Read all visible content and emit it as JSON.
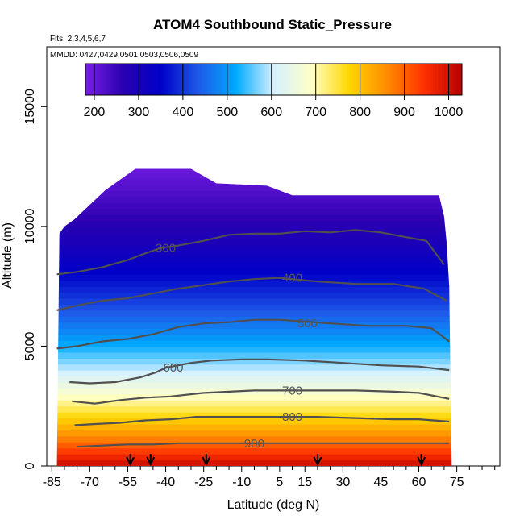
{
  "chart_data": {
    "type": "heatmap",
    "title": "ATOM4 Southbound Static_Pressure",
    "subtitle_flights": "Flts: 2,3,4,5,6,7",
    "subtitle_dates": "MMDD: 0427,0429,0501,0503,0506,0509",
    "xlabel": "Latitude (deg N)",
    "ylabel": "Altitude (m)",
    "xlim": [
      -87,
      92
    ],
    "ylim": [
      0,
      17500
    ],
    "x_ticks": [
      -85,
      -70,
      -55,
      -40,
      -25,
      -10,
      5,
      15,
      30,
      45,
      60,
      75
    ],
    "x_minor_ticks": [
      -80,
      -75,
      -65,
      -60,
      -50,
      -45,
      -35,
      -30,
      -20,
      -15,
      -5,
      0,
      10,
      20,
      25,
      35,
      40,
      50,
      55,
      65,
      70,
      80,
      85,
      90
    ],
    "y_ticks": [
      0,
      5000,
      10000,
      15000
    ],
    "colorbar": {
      "ticks": [
        200,
        300,
        400,
        500,
        600,
        700,
        800,
        900,
        1000
      ],
      "range": [
        180,
        1030
      ],
      "colors": [
        "#7a1fe6",
        "#2a00b0",
        "#0000c8",
        "#1e5ae8",
        "#00aaff",
        "#d6f1ff",
        "#ffffc8",
        "#ffd700",
        "#ff8c00",
        "#ff3000",
        "#b80000"
      ]
    },
    "data_extent": {
      "lat_south": -83,
      "lat_north": 73,
      "alt_min": 0,
      "alt_max": 12500,
      "column_tops": [
        [
          -82,
          9700
        ],
        [
          -80,
          10000
        ],
        [
          -76,
          10300
        ],
        [
          -72,
          10700
        ],
        [
          -68,
          11100
        ],
        [
          -64,
          11500
        ],
        [
          -52,
          12400
        ],
        [
          -30,
          12400
        ],
        [
          -20,
          11800
        ],
        [
          0,
          11700
        ],
        [
          10,
          11300
        ],
        [
          30,
          11300
        ],
        [
          50,
          11300
        ],
        [
          60,
          11300
        ],
        [
          68,
          11300
        ],
        [
          70,
          10400
        ],
        [
          71,
          9300
        ],
        [
          72,
          7500
        ]
      ]
    },
    "contours": [
      {
        "level": 300,
        "label": "300",
        "label_lat": -40,
        "points": [
          [
            -83,
            8000
          ],
          [
            -75,
            8100
          ],
          [
            -65,
            8300
          ],
          [
            -55,
            8600
          ],
          [
            -50,
            8800
          ],
          [
            -42,
            9100
          ],
          [
            -35,
            9200
          ],
          [
            -25,
            9400
          ],
          [
            -15,
            9650
          ],
          [
            -5,
            9700
          ],
          [
            5,
            9700
          ],
          [
            15,
            9800
          ],
          [
            25,
            9750
          ],
          [
            35,
            9850
          ],
          [
            45,
            9750
          ],
          [
            55,
            9550
          ],
          [
            63,
            9400
          ],
          [
            70,
            8400
          ]
        ]
      },
      {
        "level": 400,
        "label": "400",
        "label_lat": 10,
        "points": [
          [
            -83,
            6500
          ],
          [
            -75,
            6700
          ],
          [
            -65,
            6900
          ],
          [
            -55,
            7000
          ],
          [
            -45,
            7200
          ],
          [
            -35,
            7400
          ],
          [
            -25,
            7550
          ],
          [
            -15,
            7700
          ],
          [
            -5,
            7800
          ],
          [
            5,
            7850
          ],
          [
            20,
            7700
          ],
          [
            35,
            7600
          ],
          [
            50,
            7600
          ],
          [
            62,
            7400
          ],
          [
            71,
            6900
          ]
        ]
      },
      {
        "level": 500,
        "label": "500",
        "label_lat": 16,
        "points": [
          [
            -83,
            4900
          ],
          [
            -75,
            5000
          ],
          [
            -65,
            5200
          ],
          [
            -55,
            5300
          ],
          [
            -45,
            5500
          ],
          [
            -35,
            5800
          ],
          [
            -25,
            5950
          ],
          [
            -15,
            6000
          ],
          [
            -5,
            6100
          ],
          [
            5,
            6100
          ],
          [
            25,
            5950
          ],
          [
            40,
            5850
          ],
          [
            55,
            5850
          ],
          [
            65,
            5750
          ],
          [
            72,
            5200
          ]
        ]
      },
      {
        "level": 600,
        "label": "600",
        "label_lat": -37,
        "points": [
          [
            -78,
            3500
          ],
          [
            -70,
            3450
          ],
          [
            -60,
            3500
          ],
          [
            -50,
            3700
          ],
          [
            -44,
            3900
          ],
          [
            -40,
            4100
          ],
          [
            -30,
            4300
          ],
          [
            -22,
            4400
          ],
          [
            -10,
            4450
          ],
          [
            0,
            4450
          ],
          [
            15,
            4400
          ],
          [
            30,
            4300
          ],
          [
            45,
            4200
          ],
          [
            60,
            4150
          ],
          [
            72,
            4000
          ]
        ]
      },
      {
        "level": 700,
        "label": "700",
        "label_lat": 10,
        "points": [
          [
            -77,
            2700
          ],
          [
            -68,
            2600
          ],
          [
            -58,
            2750
          ],
          [
            -48,
            2850
          ],
          [
            -38,
            2900
          ],
          [
            -25,
            3050
          ],
          [
            -15,
            3100
          ],
          [
            -5,
            3150
          ],
          [
            5,
            3150
          ],
          [
            20,
            3150
          ],
          [
            35,
            3150
          ],
          [
            50,
            3100
          ],
          [
            60,
            3050
          ],
          [
            72,
            2800
          ]
        ]
      },
      {
        "level": 800,
        "label": "800",
        "label_lat": 10,
        "points": [
          [
            -76,
            1700
          ],
          [
            -68,
            1750
          ],
          [
            -58,
            1800
          ],
          [
            -48,
            1900
          ],
          [
            -38,
            1950
          ],
          [
            -28,
            2050
          ],
          [
            -18,
            2050
          ],
          [
            -5,
            2050
          ],
          [
            5,
            2050
          ],
          [
            20,
            2050
          ],
          [
            35,
            2000
          ],
          [
            50,
            1950
          ],
          [
            60,
            1950
          ],
          [
            72,
            1850
          ]
        ]
      },
      {
        "level": 900,
        "label": "900",
        "label_lat": -5,
        "points": [
          [
            -75,
            800
          ],
          [
            -65,
            850
          ],
          [
            -55,
            900
          ],
          [
            -45,
            900
          ],
          [
            -35,
            950
          ],
          [
            -25,
            950
          ],
          [
            -15,
            950
          ],
          [
            -5,
            950
          ],
          [
            5,
            950
          ],
          [
            20,
            950
          ],
          [
            35,
            950
          ],
          [
            50,
            950
          ],
          [
            60,
            950
          ],
          [
            72,
            950
          ]
        ]
      }
    ],
    "flight_markers_lat": [
      -54,
      -46,
      -24,
      20,
      61
    ]
  }
}
